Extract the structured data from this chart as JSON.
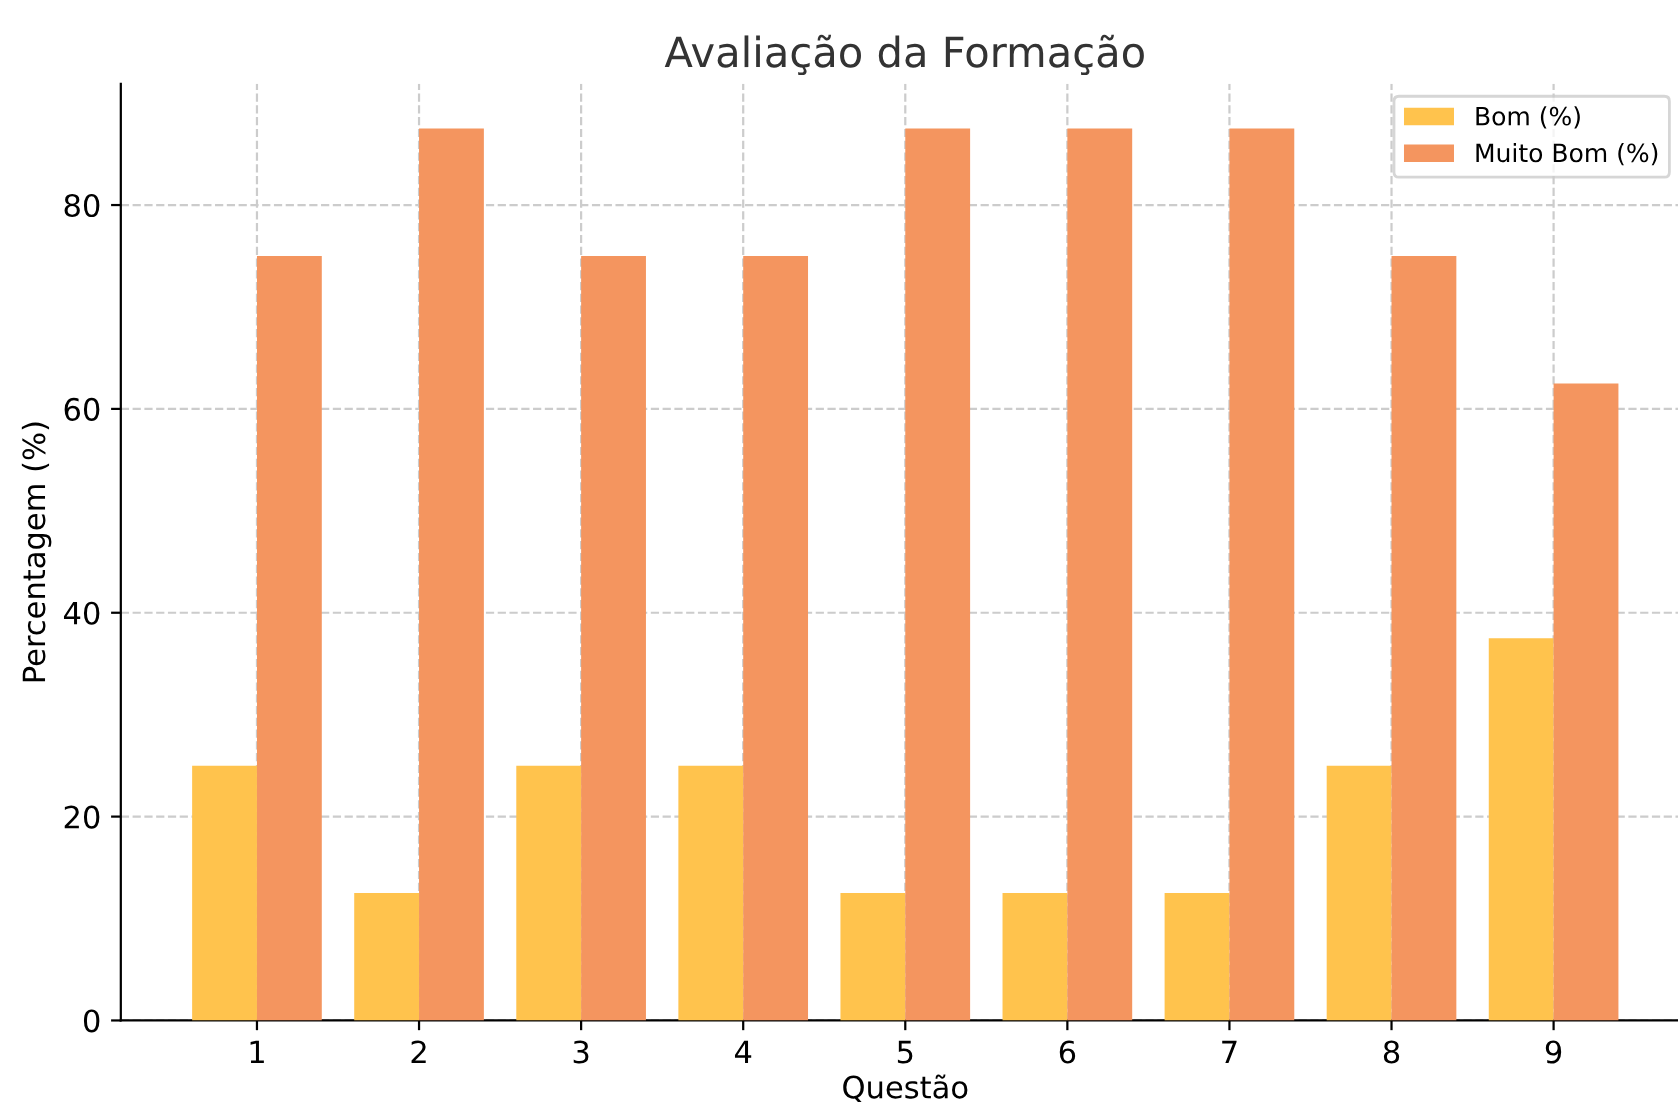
{
  "chart_data": {
    "type": "bar",
    "title": "Avaliação da Formação",
    "xlabel": "Questão",
    "ylabel": "Percentagem (%)",
    "categories": [
      "1",
      "2",
      "3",
      "4",
      "5",
      "6",
      "7",
      "8",
      "9"
    ],
    "series": [
      {
        "name": "Bom (%)",
        "color": "#ffc34d",
        "values": [
          25,
          12.5,
          25,
          25,
          12.5,
          12.5,
          12.5,
          25,
          37.5
        ]
      },
      {
        "name": "Muito Bom (%)",
        "color": "#f4955f",
        "values": [
          75,
          87.5,
          75,
          75,
          87.5,
          87.5,
          87.5,
          75,
          62.5
        ]
      }
    ],
    "ylim": [
      0,
      91.9
    ],
    "yticks": [
      0,
      20,
      40,
      60,
      80
    ],
    "grid": true,
    "legend": "top right"
  }
}
